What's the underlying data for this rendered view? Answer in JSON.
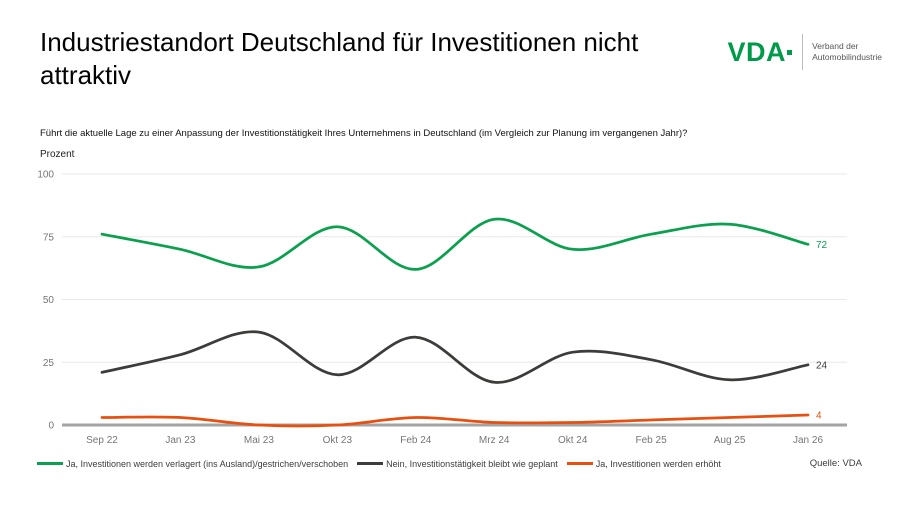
{
  "header": {
    "title": "Industriestandort Deutschland für Investitionen nicht attraktiv",
    "logo": {
      "brand": "VDA",
      "subtitle_line1": "Verband der",
      "subtitle_line2": "Automobilindustrie"
    }
  },
  "question": "Führt die aktuelle Lage zu einer Anpassung der Investitionstätigkeit Ihres Unternehmens in Deutschland (im Vergleich zur Planung im vergangenen Jahr)?",
  "source": "Quelle: VDA",
  "colors": {
    "logo_green": "#009b4a",
    "grid": "#e8e8e8",
    "axis": "#a3a3a3",
    "tick_text": "#767676"
  },
  "chart_data": {
    "type": "line",
    "title": "Industriestandort Deutschland für Investitionen nicht attraktiv",
    "xlabel": "",
    "ylabel": "Prozent",
    "ylim": [
      0,
      100
    ],
    "yticks": [
      0,
      25,
      50,
      75,
      100
    ],
    "grid": true,
    "legend_position": "bottom",
    "smoothing": "spline",
    "categories": [
      "Sep 22",
      "Jan 23",
      "Mai 23",
      "Okt 23",
      "Feb 24",
      "Mrz 24",
      "Okt 24",
      "Feb 25",
      "Aug 25",
      "Jan 26"
    ],
    "series": [
      {
        "name": "Ja, Investitionen werden verlagert (ins Ausland)/gestrichen/verschoben",
        "color": "#0aa04e",
        "values": [
          76,
          70,
          63,
          79,
          62,
          82,
          70,
          76,
          80,
          72
        ],
        "end_label": "72"
      },
      {
        "name": "Nein, Investitionstätigkeit bleibt wie geplant",
        "color": "#3c3c3b",
        "values": [
          21,
          28,
          37,
          20,
          35,
          17,
          29,
          26,
          18,
          24
        ],
        "end_label": "24"
      },
      {
        "name": "Ja, Investitionen werden erhöht",
        "color": "#e8500f",
        "values": [
          3,
          3,
          0,
          0,
          3,
          1,
          1,
          2,
          3,
          4
        ],
        "end_label": "4"
      }
    ]
  }
}
